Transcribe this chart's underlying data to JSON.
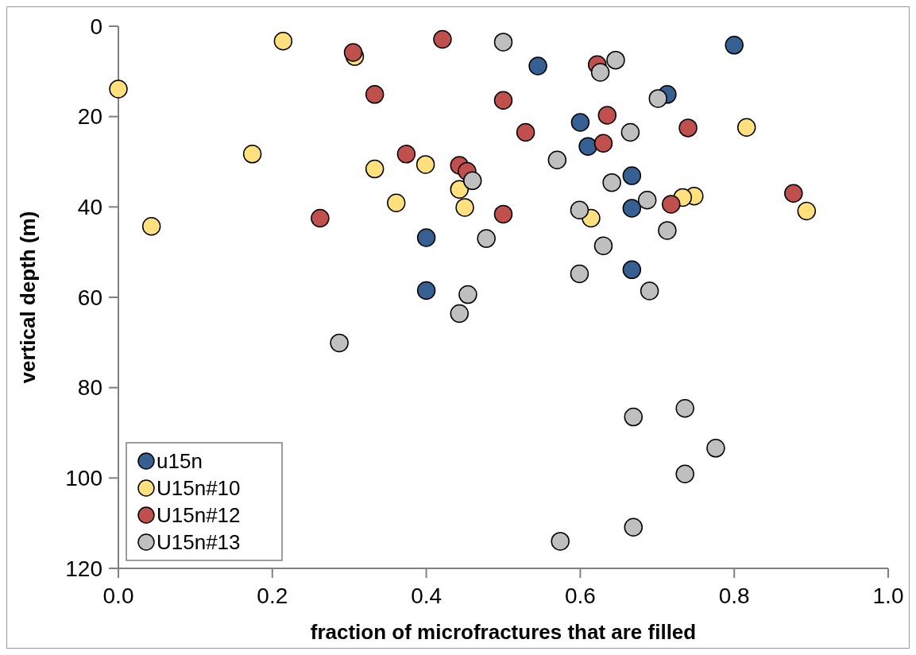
{
  "chart_data": {
    "type": "scatter",
    "xlabel": "fraction of microfractures that are filled",
    "ylabel": "vertical depth (m)",
    "xlim": [
      0,
      1
    ],
    "xticks": [
      {
        "value": 0,
        "label": "0.0"
      },
      {
        "value": 0.2,
        "label": "0.2"
      },
      {
        "value": 0.4,
        "label": "0.4"
      },
      {
        "value": 0.6,
        "label": "0.6"
      },
      {
        "value": 0.8,
        "label": "0.8"
      },
      {
        "value": 1,
        "label": "1.0"
      }
    ],
    "ylim": [
      120,
      0
    ],
    "yticks": [
      0,
      20,
      40,
      60,
      80,
      100,
      120
    ],
    "grid": false,
    "legend": "bottom left",
    "marker": "circle",
    "series": [
      {
        "name": "u15n",
        "color": "#376092",
        "x": [
          0.8,
          0.545,
          0.713,
          0.6,
          0.61,
          0.667,
          0.667,
          0.4,
          0.4,
          0.667
        ],
        "values": [
          4.2,
          8.8,
          15.1,
          21.3,
          26.6,
          33.1,
          40.3,
          46.8,
          58.5,
          53.9
        ]
      },
      {
        "name": "U15n#10",
        "color": "#ffe07d",
        "x": [
          0.174,
          0.333,
          0.399,
          0.361,
          0.443,
          0.45,
          0.043,
          0.214,
          0,
          0.307,
          0.816,
          0.748,
          0.733,
          0.894,
          0.614
        ],
        "values": [
          28.3,
          31.6,
          30.6,
          39.1,
          36.1,
          40.1,
          44.3,
          3.3,
          13.9,
          6.7,
          22.4,
          37.6,
          37.9,
          40.9,
          42.5
        ]
      },
      {
        "name": "U15n#12",
        "color": "#c0504d",
        "x": [
          0.305,
          0.421,
          0.333,
          0.374,
          0.443,
          0.453,
          0.262,
          0.5,
          0.529,
          0.622,
          0.635,
          0.63,
          0.74,
          0.5,
          0.718,
          0.877
        ],
        "values": [
          5.8,
          2.9,
          15.1,
          28.3,
          30.8,
          32.1,
          42.5,
          16.4,
          23.5,
          8.5,
          19.7,
          25.9,
          22.5,
          41.6,
          39.4,
          37.0
        ]
      },
      {
        "name": "U15n#13",
        "color": "#bfbfbf",
        "x": [
          0.5,
          0.646,
          0.626,
          0.701,
          0.665,
          0.57,
          0.46,
          0.641,
          0.687,
          0.599,
          0.478,
          0.713,
          0.63,
          0.599,
          0.69,
          0.454,
          0.443,
          0.287,
          0.669,
          0.736,
          0.776,
          0.736,
          0.669,
          0.574
        ],
        "values": [
          3.5,
          7.5,
          10.2,
          16.0,
          23.5,
          29.6,
          34.2,
          34.6,
          38.5,
          40.7,
          47.0,
          45.2,
          48.6,
          54.8,
          58.6,
          59.4,
          63.6,
          70.1,
          86.5,
          84.6,
          93.4,
          99.1,
          110.9,
          114.0
        ]
      }
    ]
  }
}
